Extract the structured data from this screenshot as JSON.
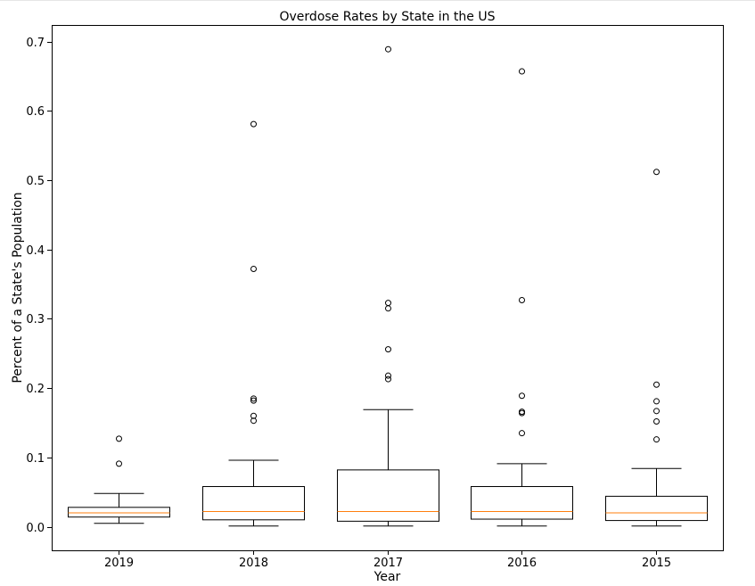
{
  "chart_data": {
    "type": "box",
    "title": "Overdose Rates by State in the US",
    "xlabel": "Year",
    "ylabel": "Percent of a State's Population",
    "ylim": [
      -0.034,
      0.724
    ],
    "yticks": [
      0.0,
      0.1,
      0.2,
      0.3,
      0.4,
      0.5,
      0.6,
      0.7
    ],
    "ytick_labels": [
      "0.0",
      "0.1",
      "0.2",
      "0.3",
      "0.4",
      "0.5",
      "0.6",
      "0.7"
    ],
    "categories": [
      "2019",
      "2018",
      "2017",
      "2016",
      "2015"
    ],
    "grid": false,
    "colors": {
      "box": "#000000",
      "median": "#ff7f0e",
      "flier": "#000000"
    },
    "boxes": [
      {
        "category": "2019",
        "whisker_low": 0.005,
        "q1": 0.014,
        "median": 0.02,
        "q3": 0.028,
        "whisker_high": 0.048,
        "fliers": [
          0.091,
          0.127
        ]
      },
      {
        "category": "2018",
        "whisker_low": 0.001,
        "q1": 0.01,
        "median": 0.022,
        "q3": 0.058,
        "whisker_high": 0.096,
        "fliers": [
          0.153,
          0.16,
          0.182,
          0.185,
          0.372,
          0.581
        ]
      },
      {
        "category": "2017",
        "whisker_low": 0.001,
        "q1": 0.008,
        "median": 0.022,
        "q3": 0.082,
        "whisker_high": 0.169,
        "fliers": [
          0.213,
          0.218,
          0.256,
          0.315,
          0.323,
          0.689
        ]
      },
      {
        "category": "2016",
        "whisker_low": 0.001,
        "q1": 0.011,
        "median": 0.022,
        "q3": 0.058,
        "whisker_high": 0.091,
        "fliers": [
          0.135,
          0.164,
          0.166,
          0.189,
          0.327,
          0.657
        ]
      },
      {
        "category": "2015",
        "whisker_low": 0.001,
        "q1": 0.009,
        "median": 0.02,
        "q3": 0.044,
        "whisker_high": 0.084,
        "fliers": [
          0.126,
          0.152,
          0.167,
          0.181,
          0.205,
          0.512
        ]
      }
    ]
  }
}
